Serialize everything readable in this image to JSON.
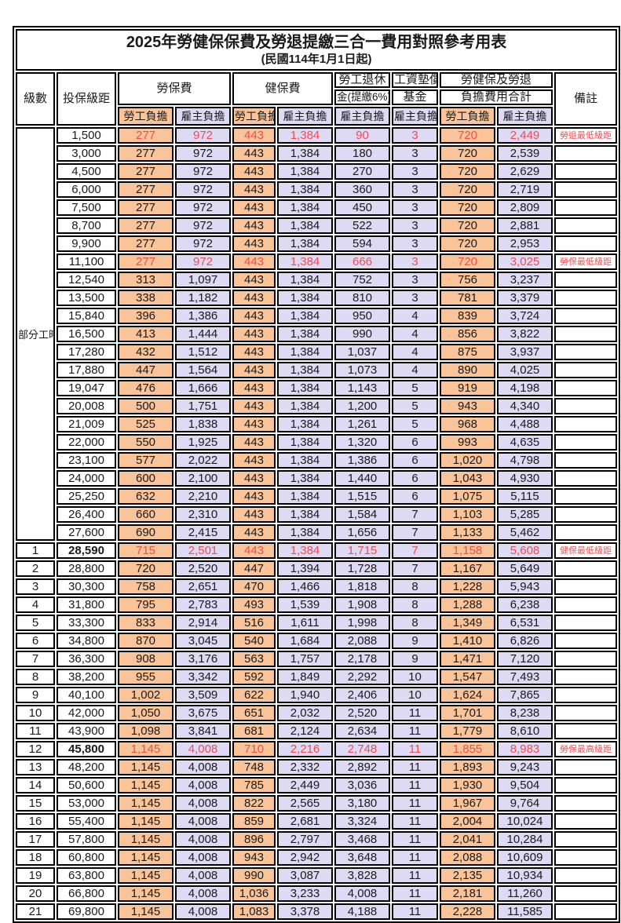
{
  "title": "2025年勞健保保費及勞退提繳三合一費用對照參考用表",
  "subtitle": "(民國114年1月1日起)",
  "columns": {
    "level": "級數",
    "bracket": "投保級距",
    "labor_insurance": "勞保費",
    "health_insurance": "健保費",
    "pension_line1": "勞工退休",
    "pension_line2": "金(提繳6%)",
    "wage_fund_line1": "工資墊償",
    "wage_fund_line2": "基金",
    "total_line1": "勞健保及勞退",
    "total_line2": "負擔費用合計",
    "remark": "備註",
    "worker": "勞工負擔",
    "employer": "雇主負擔"
  },
  "part_time_label": "部分工時",
  "part_time_span": 23,
  "colors": {
    "worker_bg": "#f9c499",
    "employer_bg": "#dedaf4",
    "highlight_text": "#f14c52"
  },
  "rows": [
    {
      "level": "",
      "bracket": "1,500",
      "values": [
        "277",
        "972",
        "443",
        "1,384",
        "90",
        "3",
        "720",
        "2,449"
      ],
      "remark": "勞退最低級距",
      "highlight": true
    },
    {
      "level": "",
      "bracket": "3,000",
      "values": [
        "277",
        "972",
        "443",
        "1,384",
        "180",
        "3",
        "720",
        "2,539"
      ],
      "remark": "",
      "highlight": false
    },
    {
      "level": "",
      "bracket": "4,500",
      "values": [
        "277",
        "972",
        "443",
        "1,384",
        "270",
        "3",
        "720",
        "2,629"
      ],
      "remark": "",
      "highlight": false
    },
    {
      "level": "",
      "bracket": "6,000",
      "values": [
        "277",
        "972",
        "443",
        "1,384",
        "360",
        "3",
        "720",
        "2,719"
      ],
      "remark": "",
      "highlight": false
    },
    {
      "level": "",
      "bracket": "7,500",
      "values": [
        "277",
        "972",
        "443",
        "1,384",
        "450",
        "3",
        "720",
        "2,809"
      ],
      "remark": "",
      "highlight": false
    },
    {
      "level": "",
      "bracket": "8,700",
      "values": [
        "277",
        "972",
        "443",
        "1,384",
        "522",
        "3",
        "720",
        "2,881"
      ],
      "remark": "",
      "highlight": false
    },
    {
      "level": "",
      "bracket": "9,900",
      "values": [
        "277",
        "972",
        "443",
        "1,384",
        "594",
        "3",
        "720",
        "2,953"
      ],
      "remark": "",
      "highlight": false
    },
    {
      "level": "",
      "bracket": "11,100",
      "values": [
        "277",
        "972",
        "443",
        "1,384",
        "666",
        "3",
        "720",
        "3,025"
      ],
      "remark": "勞保最低級距",
      "highlight": true
    },
    {
      "level": "",
      "bracket": "12,540",
      "values": [
        "313",
        "1,097",
        "443",
        "1,384",
        "752",
        "3",
        "756",
        "3,237"
      ],
      "remark": "",
      "highlight": false
    },
    {
      "level": "",
      "bracket": "13,500",
      "values": [
        "338",
        "1,182",
        "443",
        "1,384",
        "810",
        "3",
        "781",
        "3,379"
      ],
      "remark": "",
      "highlight": false
    },
    {
      "level": "",
      "bracket": "15,840",
      "values": [
        "396",
        "1,386",
        "443",
        "1,384",
        "950",
        "4",
        "839",
        "3,724"
      ],
      "remark": "",
      "highlight": false
    },
    {
      "level": "",
      "bracket": "16,500",
      "values": [
        "413",
        "1,444",
        "443",
        "1,384",
        "990",
        "4",
        "856",
        "3,822"
      ],
      "remark": "",
      "highlight": false
    },
    {
      "level": "",
      "bracket": "17,280",
      "values": [
        "432",
        "1,512",
        "443",
        "1,384",
        "1,037",
        "4",
        "875",
        "3,937"
      ],
      "remark": "",
      "highlight": false
    },
    {
      "level": "",
      "bracket": "17,880",
      "values": [
        "447",
        "1,564",
        "443",
        "1,384",
        "1,073",
        "4",
        "890",
        "4,025"
      ],
      "remark": "",
      "highlight": false
    },
    {
      "level": "",
      "bracket": "19,047",
      "values": [
        "476",
        "1,666",
        "443",
        "1,384",
        "1,143",
        "5",
        "919",
        "4,198"
      ],
      "remark": "",
      "highlight": false
    },
    {
      "level": "",
      "bracket": "20,008",
      "values": [
        "500",
        "1,751",
        "443",
        "1,384",
        "1,200",
        "5",
        "943",
        "4,340"
      ],
      "remark": "",
      "highlight": false
    },
    {
      "level": "",
      "bracket": "21,009",
      "values": [
        "525",
        "1,838",
        "443",
        "1,384",
        "1,261",
        "5",
        "968",
        "4,488"
      ],
      "remark": "",
      "highlight": false
    },
    {
      "level": "",
      "bracket": "22,000",
      "values": [
        "550",
        "1,925",
        "443",
        "1,384",
        "1,320",
        "6",
        "993",
        "4,635"
      ],
      "remark": "",
      "highlight": false
    },
    {
      "level": "",
      "bracket": "23,100",
      "values": [
        "577",
        "2,022",
        "443",
        "1,384",
        "1,386",
        "6",
        "1,020",
        "4,798"
      ],
      "remark": "",
      "highlight": false
    },
    {
      "level": "",
      "bracket": "24,000",
      "values": [
        "600",
        "2,100",
        "443",
        "1,384",
        "1,440",
        "6",
        "1,043",
        "4,930"
      ],
      "remark": "",
      "highlight": false
    },
    {
      "level": "",
      "bracket": "25,250",
      "values": [
        "632",
        "2,210",
        "443",
        "1,384",
        "1,515",
        "6",
        "1,075",
        "5,115"
      ],
      "remark": "",
      "highlight": false
    },
    {
      "level": "",
      "bracket": "26,400",
      "values": [
        "660",
        "2,310",
        "443",
        "1,384",
        "1,584",
        "7",
        "1,103",
        "5,285"
      ],
      "remark": "",
      "highlight": false
    },
    {
      "level": "",
      "bracket": "27,600",
      "values": [
        "690",
        "2,415",
        "443",
        "1,384",
        "1,656",
        "7",
        "1,133",
        "5,462"
      ],
      "remark": "",
      "highlight": false
    },
    {
      "level": "1",
      "bracket": "28,590",
      "values": [
        "715",
        "2,501",
        "443",
        "1,384",
        "1,715",
        "7",
        "1,158",
        "5,608"
      ],
      "remark": "健保最低級距",
      "highlight": true,
      "bold_bracket": true
    },
    {
      "level": "2",
      "bracket": "28,800",
      "values": [
        "720",
        "2,520",
        "447",
        "1,394",
        "1,728",
        "7",
        "1,167",
        "5,649"
      ],
      "remark": "",
      "highlight": false
    },
    {
      "level": "3",
      "bracket": "30,300",
      "values": [
        "758",
        "2,651",
        "470",
        "1,466",
        "1,818",
        "8",
        "1,228",
        "5,943"
      ],
      "remark": "",
      "highlight": false
    },
    {
      "level": "4",
      "bracket": "31,800",
      "values": [
        "795",
        "2,783",
        "493",
        "1,539",
        "1,908",
        "8",
        "1,288",
        "6,238"
      ],
      "remark": "",
      "highlight": false
    },
    {
      "level": "5",
      "bracket": "33,300",
      "values": [
        "833",
        "2,914",
        "516",
        "1,611",
        "1,998",
        "8",
        "1,349",
        "6,531"
      ],
      "remark": "",
      "highlight": false
    },
    {
      "level": "6",
      "bracket": "34,800",
      "values": [
        "870",
        "3,045",
        "540",
        "1,684",
        "2,088",
        "9",
        "1,410",
        "6,826"
      ],
      "remark": "",
      "highlight": false
    },
    {
      "level": "7",
      "bracket": "36,300",
      "values": [
        "908",
        "3,176",
        "563",
        "1,757",
        "2,178",
        "9",
        "1,471",
        "7,120"
      ],
      "remark": "",
      "highlight": false
    },
    {
      "level": "8",
      "bracket": "38,200",
      "values": [
        "955",
        "3,342",
        "592",
        "1,849",
        "2,292",
        "10",
        "1,547",
        "7,493"
      ],
      "remark": "",
      "highlight": false
    },
    {
      "level": "9",
      "bracket": "40,100",
      "values": [
        "1,002",
        "3,509",
        "622",
        "1,940",
        "2,406",
        "10",
        "1,624",
        "7,865"
      ],
      "remark": "",
      "highlight": false
    },
    {
      "level": "10",
      "bracket": "42,000",
      "values": [
        "1,050",
        "3,675",
        "651",
        "2,032",
        "2,520",
        "11",
        "1,701",
        "8,238"
      ],
      "remark": "",
      "highlight": false
    },
    {
      "level": "11",
      "bracket": "43,900",
      "values": [
        "1,098",
        "3,841",
        "681",
        "2,124",
        "2,634",
        "11",
        "1,779",
        "8,610"
      ],
      "remark": "",
      "highlight": false
    },
    {
      "level": "12",
      "bracket": "45,800",
      "values": [
        "1,145",
        "4,008",
        "710",
        "2,216",
        "2,748",
        "11",
        "1,855",
        "8,983"
      ],
      "remark": "勞保最高級距",
      "highlight": true,
      "bold_bracket": true
    },
    {
      "level": "13",
      "bracket": "48,200",
      "values": [
        "1,145",
        "4,008",
        "748",
        "2,332",
        "2,892",
        "11",
        "1,893",
        "9,243"
      ],
      "remark": "",
      "highlight": false
    },
    {
      "level": "14",
      "bracket": "50,600",
      "values": [
        "1,145",
        "4,008",
        "785",
        "2,449",
        "3,036",
        "11",
        "1,930",
        "9,504"
      ],
      "remark": "",
      "highlight": false
    },
    {
      "level": "15",
      "bracket": "53,000",
      "values": [
        "1,145",
        "4,008",
        "822",
        "2,565",
        "3,180",
        "11",
        "1,967",
        "9,764"
      ],
      "remark": "",
      "highlight": false
    },
    {
      "level": "16",
      "bracket": "55,400",
      "values": [
        "1,145",
        "4,008",
        "859",
        "2,681",
        "3,324",
        "11",
        "2,004",
        "10,024"
      ],
      "remark": "",
      "highlight": false
    },
    {
      "level": "17",
      "bracket": "57,800",
      "values": [
        "1,145",
        "4,008",
        "896",
        "2,797",
        "3,468",
        "11",
        "2,041",
        "10,284"
      ],
      "remark": "",
      "highlight": false
    },
    {
      "level": "18",
      "bracket": "60,800",
      "values": [
        "1,145",
        "4,008",
        "943",
        "2,942",
        "3,648",
        "11",
        "2,088",
        "10,609"
      ],
      "remark": "",
      "highlight": false
    },
    {
      "level": "19",
      "bracket": "63,800",
      "values": [
        "1,145",
        "4,008",
        "990",
        "3,087",
        "3,828",
        "11",
        "2,135",
        "10,934"
      ],
      "remark": "",
      "highlight": false
    },
    {
      "level": "20",
      "bracket": "66,800",
      "values": [
        "1,145",
        "4,008",
        "1,036",
        "3,233",
        "4,008",
        "11",
        "2,181",
        "11,260"
      ],
      "remark": "",
      "highlight": false
    },
    {
      "level": "21",
      "bracket": "69,800",
      "values": [
        "1,145",
        "4,008",
        "1,083",
        "3,378",
        "4,188",
        "11",
        "2,228",
        "11,585"
      ],
      "remark": "",
      "highlight": false
    }
  ]
}
